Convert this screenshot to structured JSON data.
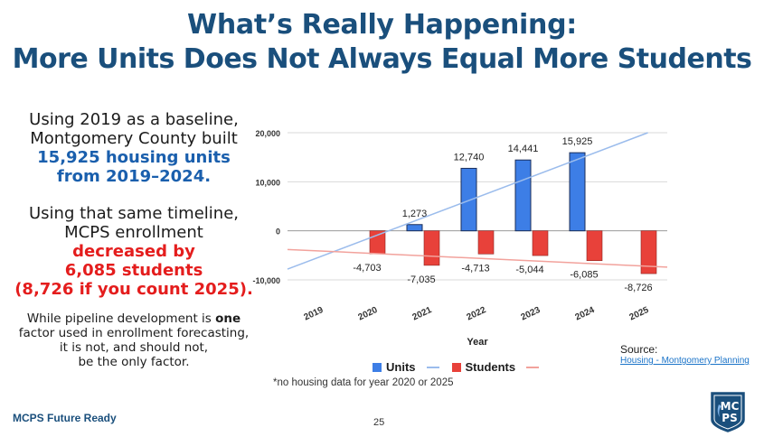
{
  "slide": {
    "title_line1": "What’s Really Happening:",
    "title_line2": "More Units Does Not Always Equal More Students",
    "left": {
      "p1_line1": "Using 2019 as a baseline,",
      "p1_line2": "Montgomery County built",
      "p1_highlight1": "15,925 housing units",
      "p1_highlight2": "from 2019–2024.",
      "p2_line1": "Using that same timeline,",
      "p2_line2": "MCPS enrollment",
      "p2_red1": "decreased by",
      "p2_red2": "6,085 students",
      "p2_red3": "(8,726 if you count 2025).",
      "p3_before": "While pipeline development is ",
      "p3_bold": "one",
      "p3_line2": "factor used in enrollment forecasting,",
      "p3_line3": "it is not, and should not,",
      "p3_line4": "be the only factor."
    },
    "footnote": "*no housing data for year 2020 or 2025",
    "source_label": "Source:",
    "source_link": "Housing - Montgomery Planning",
    "footer_brand": "MCPS Future Ready",
    "page_number": "25",
    "logo_text_top": "MC",
    "logo_text_bottom": "PS"
  },
  "colors": {
    "units": "#3d7ee6",
    "students": "#e8413a",
    "units_trend": "#9bbcec",
    "students_trend": "#f2a29c",
    "title": "#1a4f7c"
  },
  "chart_data": {
    "type": "bar",
    "title": "",
    "xlabel": "Year",
    "ylabel": "",
    "ylim": [
      -10000,
      20000
    ],
    "yticks": [
      -10000,
      0,
      10000,
      20000
    ],
    "ytick_labels": [
      "-10,000",
      "0",
      "10,000",
      "20,000"
    ],
    "categories": [
      "2019",
      "2020",
      "2021",
      "2022",
      "2023",
      "2024",
      "2025"
    ],
    "series": [
      {
        "name": "Units",
        "values": [
          null,
          null,
          1273,
          12740,
          14441,
          15925,
          null
        ],
        "labels": [
          "",
          "",
          "1,273",
          "12,740",
          "14,441",
          "15,925",
          ""
        ]
      },
      {
        "name": "Students",
        "values": [
          null,
          -4703,
          -7035,
          -4713,
          -5044,
          -6085,
          -8726
        ],
        "labels": [
          "",
          "-4,703",
          "-7,035",
          "-4,713",
          "-5,044",
          "-6,085",
          "-8,726"
        ]
      }
    ],
    "trendlines": [
      {
        "series": "Units",
        "start": -7800,
        "end": 21500
      },
      {
        "series": "Students",
        "start": -3800,
        "end": -7400
      }
    ],
    "legend": [
      "Units",
      "Students"
    ],
    "legend_position": "bottom",
    "grid": true
  }
}
